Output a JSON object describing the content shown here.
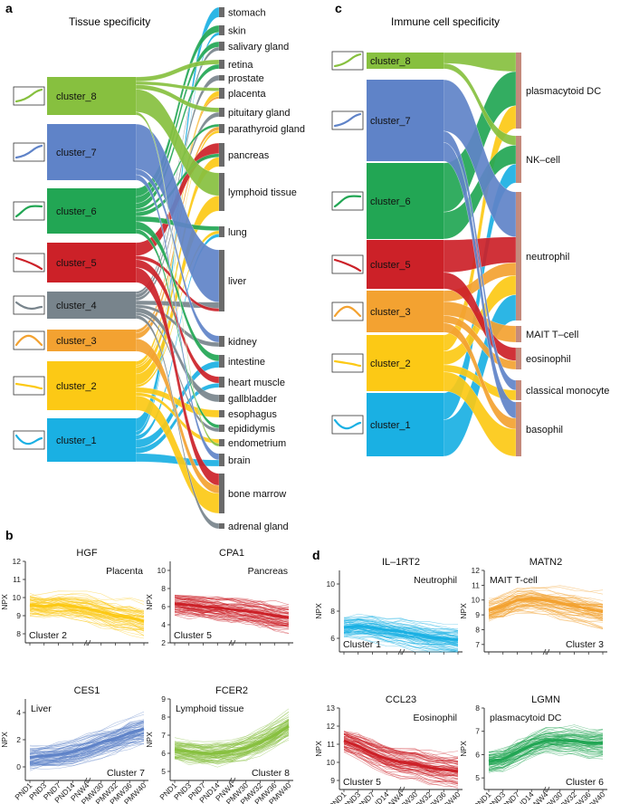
{
  "colors": {
    "c1": "#1ab0e3",
    "c2": "#fcc915",
    "c3": "#f3a231",
    "c4": "#78848c",
    "c5": "#cc2128",
    "c6": "#22a654",
    "c7": "#5f83c8",
    "c8": "#87c03f",
    "tissue_bar": "#6a6a6a",
    "immune_bar": "#c48a7c"
  },
  "panel_a": {
    "letter": "a",
    "title": "Tissue specificity",
    "clusters": [
      {
        "id": "c8",
        "label": "cluster_8",
        "color": "#87c03f",
        "trend": "rise"
      },
      {
        "id": "c7",
        "label": "cluster_7",
        "color": "#5f83c8",
        "trend": "rise"
      },
      {
        "id": "c6",
        "label": "cluster_6",
        "color": "#22a654",
        "trend": "rise_plateau"
      },
      {
        "id": "c5",
        "label": "cluster_5",
        "color": "#cc2128",
        "trend": "fall"
      },
      {
        "id": "c4",
        "label": "cluster_4",
        "color": "#78848c",
        "trend": "fall_dip"
      },
      {
        "id": "c3",
        "label": "cluster_3",
        "color": "#f3a231",
        "trend": "hump"
      },
      {
        "id": "c2",
        "label": "cluster_2",
        "color": "#fcc915",
        "trend": "slight_fall"
      },
      {
        "id": "c1",
        "label": "cluster_1",
        "color": "#1ab0e3",
        "trend": "dip"
      }
    ],
    "targets": [
      "stomach",
      "skin",
      "salivary gland",
      "retina",
      "prostate",
      "placenta",
      "pituitary gland",
      "parathyroid gland",
      "pancreas",
      "lymphoid tissue",
      "lung",
      "liver",
      "kidney",
      "intestine",
      "heart muscle",
      "gallbladder",
      "esophagus",
      "epididymis",
      "endometrium",
      "brain",
      "bone marrow",
      "adrenal gland"
    ]
  },
  "panel_c": {
    "letter": "c",
    "title": "Immune cell specificity",
    "clusters": [
      {
        "id": "c8",
        "label": "cluster_8",
        "color": "#87c03f",
        "trend": "rise"
      },
      {
        "id": "c7",
        "label": "cluster_7",
        "color": "#5f83c8",
        "trend": "rise"
      },
      {
        "id": "c6",
        "label": "cluster_6",
        "color": "#22a654",
        "trend": "rise_plateau"
      },
      {
        "id": "c5",
        "label": "cluster_5",
        "color": "#cc2128",
        "trend": "fall"
      },
      {
        "id": "c3",
        "label": "cluster_3",
        "color": "#f3a231",
        "trend": "hump"
      },
      {
        "id": "c2",
        "label": "cluster_2",
        "color": "#fcc915",
        "trend": "slight_fall"
      },
      {
        "id": "c1",
        "label": "cluster_1",
        "color": "#1ab0e3",
        "trend": "dip"
      }
    ],
    "targets": [
      "plasmacytoid DC",
      "NK–cell",
      "neutrophil",
      "MAIT T–cell",
      "eosinophil",
      "classical monocyte",
      "basophil"
    ]
  },
  "panel_b_letter": "b",
  "panel_d_letter": "d",
  "x_categories": [
    "PND1",
    "PND3",
    "PND7",
    "PND14",
    "PNW4",
    "PMW30",
    "PMW32",
    "PMW36",
    "PMW40"
  ],
  "ylabel": "NPX",
  "chart_data": [
    {
      "type": "line",
      "title": "HGF",
      "tissue": "Placenta",
      "cluster": "Cluster 2",
      "color": "#fcc915",
      "ylabel": "NPX",
      "ylim": [
        7.5,
        12
      ],
      "yticks": [
        8,
        9,
        10,
        11,
        12
      ],
      "x": [
        "PND1",
        "PND3",
        "PND7",
        "PND14",
        "PNW4",
        "PMW30",
        "PMW32",
        "PMW36",
        "PMW40"
      ],
      "mean": [
        9.6,
        9.5,
        9.6,
        9.5,
        9.4,
        9.2,
        9.0,
        8.9,
        8.7
      ]
    },
    {
      "type": "line",
      "title": "CPA1",
      "tissue": "Pancreas",
      "cluster": "Cluster 5",
      "color": "#cc2128",
      "ylabel": "NPX",
      "ylim": [
        2,
        11
      ],
      "yticks": [
        2,
        4,
        6,
        8,
        10
      ],
      "x": [
        "PND1",
        "PND3",
        "PND7",
        "PND14",
        "PNW4",
        "PMW30",
        "PMW32",
        "PMW36",
        "PMW40"
      ],
      "mean": [
        6.3,
        6.2,
        6.0,
        5.9,
        5.7,
        5.5,
        5.3,
        5.0,
        4.8
      ]
    },
    {
      "type": "line",
      "title": "CES1",
      "tissue": "Liver",
      "cluster": "Cluster 7",
      "color": "#5f83c8",
      "ylabel": "NPX",
      "ylim": [
        -1,
        5
      ],
      "yticks": [
        0,
        2,
        4
      ],
      "x": [
        "PND1",
        "PND3",
        "PND7",
        "PND14",
        "PNW4",
        "PMW30",
        "PMW32",
        "PMW36",
        "PMW40"
      ],
      "mean": [
        0.7,
        0.8,
        0.9,
        1.1,
        1.4,
        1.8,
        2.1,
        2.5,
        2.8
      ]
    },
    {
      "type": "line",
      "title": "FCER2",
      "tissue": "Lymphoid tissue",
      "cluster": "Cluster 8",
      "color": "#87c03f",
      "ylabel": "NPX",
      "ylim": [
        4.5,
        9
      ],
      "yticks": [
        5,
        6,
        7,
        8,
        9
      ],
      "x": [
        "PND1",
        "PND3",
        "PND7",
        "PND14",
        "PNW4",
        "PMW30",
        "PMW32",
        "PMW36",
        "PMW40"
      ],
      "mean": [
        6.2,
        6.1,
        6.0,
        6.0,
        6.1,
        6.3,
        6.6,
        7.0,
        7.5
      ]
    },
    {
      "type": "line",
      "title": "IL–1RT2",
      "tissue": "Neutrophil",
      "cluster": "Cluster 1",
      "color": "#1ab0e3",
      "ylabel": "NPX",
      "ylim": [
        5,
        11
      ],
      "yticks": [
        6,
        8,
        10
      ],
      "x": [
        "PND1",
        "PND3",
        "PND7",
        "PND14",
        "PNW4",
        "PMW30",
        "PMW32",
        "PMW36",
        "PMW40"
      ],
      "mean": [
        6.8,
        6.9,
        6.8,
        6.6,
        6.5,
        6.3,
        6.1,
        6.0,
        5.9
      ]
    },
    {
      "type": "line",
      "title": "MATN2",
      "tissue": "MAIT T-cell",
      "cluster": "Cluster 3",
      "color": "#f3a231",
      "ylabel": "NPX",
      "ylim": [
        6.5,
        12
      ],
      "yticks": [
        7,
        8,
        9,
        10,
        11,
        12
      ],
      "x": [
        "PND1",
        "PND3",
        "PND7",
        "PND14",
        "PNW4",
        "PMW30",
        "PMW32",
        "PMW36",
        "PMW40"
      ],
      "mean": [
        9.3,
        9.6,
        10.0,
        10.1,
        10.0,
        9.8,
        9.6,
        9.4,
        9.2
      ]
    },
    {
      "type": "line",
      "title": "CCL23",
      "tissue": "Eosinophil",
      "cluster": "Cluster 5",
      "color": "#cc2128",
      "ylabel": "NPX",
      "ylim": [
        8.5,
        13
      ],
      "yticks": [
        9,
        10,
        11,
        12,
        13
      ],
      "x": [
        "PND1",
        "PND3",
        "PND7",
        "PND14",
        "PNW4",
        "PMW30",
        "PMW32",
        "PMW36",
        "PMW40"
      ],
      "mean": [
        11.2,
        10.9,
        10.5,
        10.2,
        10.0,
        9.9,
        9.7,
        9.6,
        9.5
      ]
    },
    {
      "type": "line",
      "title": "LGMN",
      "tissue": "plasmacytoid DC",
      "cluster": "Cluster 6",
      "color": "#22a654",
      "ylabel": "NPX",
      "ylim": [
        4.5,
        8
      ],
      "yticks": [
        5,
        6,
        7,
        8
      ],
      "x": [
        "PND1",
        "PND3",
        "PND7",
        "PND14",
        "PNW4",
        "PMW30",
        "PMW32",
        "PMW36",
        "PMW40"
      ],
      "mean": [
        5.7,
        5.8,
        6.1,
        6.4,
        6.6,
        6.6,
        6.6,
        6.5,
        6.5
      ]
    }
  ]
}
